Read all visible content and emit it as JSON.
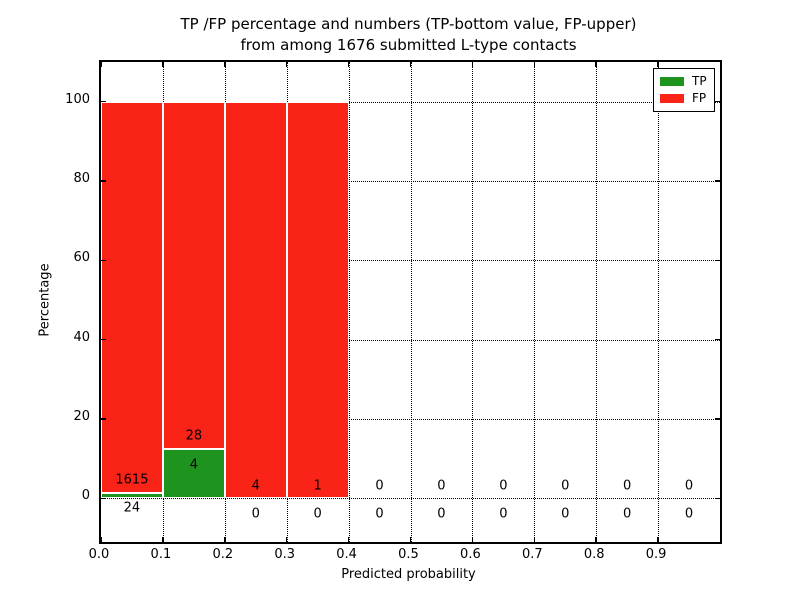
{
  "chart_data": {
    "type": "bar",
    "stacked": true,
    "title": "TP /FP percentage and numbers (TP-bottom value, FP-upper)",
    "subtitle": "from among 1676 submitted L-type contacts",
    "xlabel": "Predicted probability",
    "ylabel": "Percentage",
    "xlim": [
      0.0,
      1.0
    ],
    "ylim": [
      -11,
      110
    ],
    "grid": true,
    "bar_edge_color": "#ffffff",
    "legend": {
      "position": "upper-right",
      "entries": [
        {
          "label": "TP",
          "color": "#1e941e"
        },
        {
          "label": "FP",
          "color": "#f92318"
        }
      ]
    },
    "xticks": [
      {
        "label": "0.0",
        "value": 0.0
      },
      {
        "label": "0.1",
        "value": 0.1
      },
      {
        "label": "0.2",
        "value": 0.2
      },
      {
        "label": "0.3",
        "value": 0.3
      },
      {
        "label": "0.4",
        "value": 0.4
      },
      {
        "label": "0.5",
        "value": 0.5
      },
      {
        "label": "0.6",
        "value": 0.6
      },
      {
        "label": "0.7",
        "value": 0.7
      },
      {
        "label": "0.8",
        "value": 0.8
      },
      {
        "label": "0.9",
        "value": 0.9
      }
    ],
    "yticks": [
      {
        "label": "0",
        "value": 0
      },
      {
        "label": "20",
        "value": 20
      },
      {
        "label": "40",
        "value": 40
      },
      {
        "label": "60",
        "value": 60
      },
      {
        "label": "80",
        "value": 80
      },
      {
        "label": "100",
        "value": 100
      }
    ],
    "bins": [
      {
        "x0": 0.0,
        "x1": 0.1,
        "tp": 24,
        "fp": 1615
      },
      {
        "x0": 0.1,
        "x1": 0.2,
        "tp": 4,
        "fp": 28
      },
      {
        "x0": 0.2,
        "x1": 0.3,
        "tp": 0,
        "fp": 4
      },
      {
        "x0": 0.3,
        "x1": 0.4,
        "tp": 0,
        "fp": 1
      },
      {
        "x0": 0.4,
        "x1": 0.5,
        "tp": 0,
        "fp": 0
      },
      {
        "x0": 0.5,
        "x1": 0.6,
        "tp": 0,
        "fp": 0
      },
      {
        "x0": 0.6,
        "x1": 0.7,
        "tp": 0,
        "fp": 0
      },
      {
        "x0": 0.7,
        "x1": 0.8,
        "tp": 0,
        "fp": 0
      },
      {
        "x0": 0.8,
        "x1": 0.9,
        "tp": 0,
        "fp": 0
      },
      {
        "x0": 0.9,
        "x1": 1.0,
        "tp": 0,
        "fp": 0
      }
    ]
  }
}
